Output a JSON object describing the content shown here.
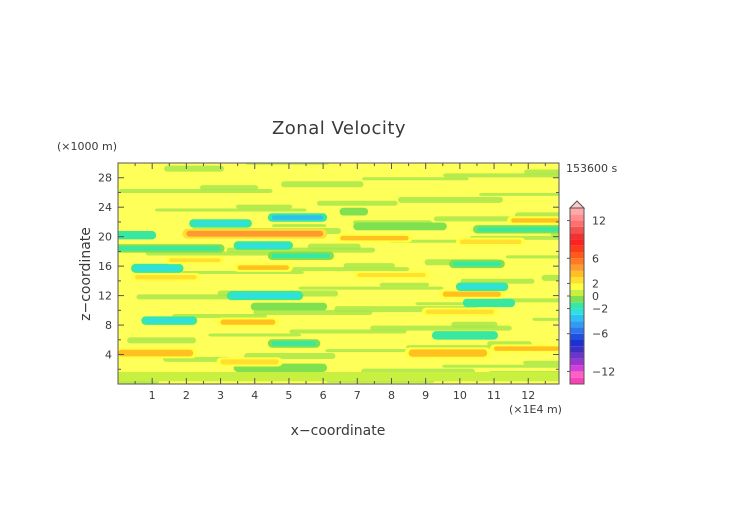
{
  "chart_data": {
    "type": "heatmap",
    "title": "Zonal Velocity",
    "xlabel": "x−coordinate",
    "ylabel": "z−coordinate",
    "x_unit": "(×1E4 m)",
    "y_unit": "(×1000 m)",
    "time_label": "153600 s",
    "xlim": [
      0,
      12.9
    ],
    "ylim": [
      0,
      30
    ],
    "x_ticks": [
      "1",
      "2",
      "3",
      "4",
      "5",
      "6",
      "7",
      "8",
      "9",
      "10",
      "11",
      "12"
    ],
    "y_ticks": [
      "4",
      "8",
      "12",
      "16",
      "20",
      "24",
      "28"
    ],
    "colorbar": {
      "levels": [
        -14,
        -13,
        -12,
        -11,
        -10,
        -9,
        -8,
        -7,
        -6,
        -5,
        -4,
        -3,
        -2,
        -1,
        0,
        1,
        2,
        3,
        4,
        5,
        6,
        7,
        8,
        9,
        10,
        11,
        12,
        13,
        14
      ],
      "colors": [
        "#ff3fb6",
        "#ff5fc6",
        "#d33fd8",
        "#9a35cf",
        "#6a35c8",
        "#3b2fc6",
        "#1f2fd0",
        "#1f4fe0",
        "#2f75ee",
        "#2f9cf2",
        "#2fc0f2",
        "#2fe0e0",
        "#38e8a0",
        "#7fe050",
        "#c8f040",
        "#ffff40",
        "#ffdf30",
        "#ffc020",
        "#ff9a30",
        "#ff7a20",
        "#ff5a1a",
        "#ff3a1a",
        "#ff2020",
        "#f33030",
        "#f35050",
        "#ff6f6f",
        "#ff8f8f",
        "#ffa9a9"
      ],
      "tick_labels": [
        "12",
        "6",
        "2",
        "0",
        "−2",
        "−6",
        "−12"
      ],
      "tick_values": [
        12,
        6,
        2,
        0,
        -2,
        -6,
        -12
      ]
    },
    "bands": [
      {
        "z": 1.0,
        "h": 0.7,
        "x0": 0.0,
        "x1": 12.9,
        "u": 0.4
      },
      {
        "z": 2.2,
        "h": 0.6,
        "x0": 3.5,
        "x1": 6.0,
        "u": -1.0
      },
      {
        "z": 3.0,
        "h": 0.7,
        "x0": 3.0,
        "x1": 4.7,
        "u": 2.2
      },
      {
        "z": 4.2,
        "h": 0.9,
        "x0": 0.0,
        "x1": 2.2,
        "u": 3.5
      },
      {
        "z": 4.2,
        "h": 1.0,
        "x0": 8.5,
        "x1": 10.8,
        "u": 3.5
      },
      {
        "z": 4.8,
        "h": 0.6,
        "x0": 11.0,
        "x1": 12.9,
        "u": 3.0
      },
      {
        "z": 5.5,
        "h": 0.6,
        "x0": 4.5,
        "x1": 5.8,
        "u": -1.5
      },
      {
        "z": 6.6,
        "h": 0.6,
        "x0": 9.3,
        "x1": 11.0,
        "u": -2.0
      },
      {
        "z": 8.4,
        "h": 0.7,
        "x0": 3.0,
        "x1": 4.6,
        "u": 3.0
      },
      {
        "z": 8.6,
        "h": 0.6,
        "x0": 0.8,
        "x1": 2.2,
        "u": -2.5
      },
      {
        "z": 9.8,
        "h": 0.6,
        "x0": 9.0,
        "x1": 11.0,
        "u": 2.5
      },
      {
        "z": 10.5,
        "h": 0.5,
        "x0": 4.0,
        "x1": 6.0,
        "u": -1.0
      },
      {
        "z": 11.0,
        "h": 0.6,
        "x0": 10.2,
        "x1": 11.5,
        "u": -2.0
      },
      {
        "z": 12.0,
        "h": 0.7,
        "x0": 3.3,
        "x1": 5.3,
        "u": -2.8
      },
      {
        "z": 12.2,
        "h": 0.7,
        "x0": 9.5,
        "x1": 11.2,
        "u": 3.0
      },
      {
        "z": 13.2,
        "h": 0.6,
        "x0": 10.0,
        "x1": 11.3,
        "u": -2.5
      },
      {
        "z": 14.5,
        "h": 0.6,
        "x0": 0.5,
        "x1": 2.3,
        "u": 2.5
      },
      {
        "z": 14.8,
        "h": 0.5,
        "x0": 7.0,
        "x1": 9.0,
        "u": 2.0
      },
      {
        "z": 15.7,
        "h": 0.7,
        "x0": 0.5,
        "x1": 1.8,
        "u": -2.8
      },
      {
        "z": 15.8,
        "h": 0.6,
        "x0": 3.5,
        "x1": 5.0,
        "u": 3.0
      },
      {
        "z": 16.3,
        "h": 0.6,
        "x0": 9.8,
        "x1": 11.2,
        "u": -1.5
      },
      {
        "z": 16.8,
        "h": 0.5,
        "x0": 1.5,
        "x1": 3.0,
        "u": 2.0
      },
      {
        "z": 17.4,
        "h": 0.6,
        "x0": 4.5,
        "x1": 6.2,
        "u": -1.8
      },
      {
        "z": 18.4,
        "h": 0.6,
        "x0": 0.0,
        "x1": 3.0,
        "u": -1.2
      },
      {
        "z": 18.8,
        "h": 0.6,
        "x0": 3.5,
        "x1": 5.0,
        "u": -2.4
      },
      {
        "z": 19.3,
        "h": 0.6,
        "x0": 10.0,
        "x1": 11.8,
        "u": 2.0
      },
      {
        "z": 19.8,
        "h": 0.6,
        "x0": 6.5,
        "x1": 8.5,
        "u": 3.0
      },
      {
        "z": 20.4,
        "h": 0.8,
        "x0": 2.0,
        "x1": 6.0,
        "u": 4.5
      },
      {
        "z": 20.2,
        "h": 0.6,
        "x0": 0.0,
        "x1": 1.0,
        "u": -2.0
      },
      {
        "z": 21.0,
        "h": 0.6,
        "x0": 10.5,
        "x1": 12.9,
        "u": -1.8
      },
      {
        "z": 21.4,
        "h": 0.5,
        "x0": 7.0,
        "x1": 9.5,
        "u": -1.0
      },
      {
        "z": 21.8,
        "h": 0.6,
        "x0": 2.2,
        "x1": 3.8,
        "u": -2.6
      },
      {
        "z": 22.2,
        "h": 0.6,
        "x0": 11.5,
        "x1": 12.9,
        "u": 3.0
      },
      {
        "z": 22.6,
        "h": 0.6,
        "x0": 4.5,
        "x1": 6.0,
        "u": -3.2
      },
      {
        "z": 23.4,
        "h": 0.5,
        "x0": 6.6,
        "x1": 7.2,
        "u": -1.0
      }
    ]
  }
}
